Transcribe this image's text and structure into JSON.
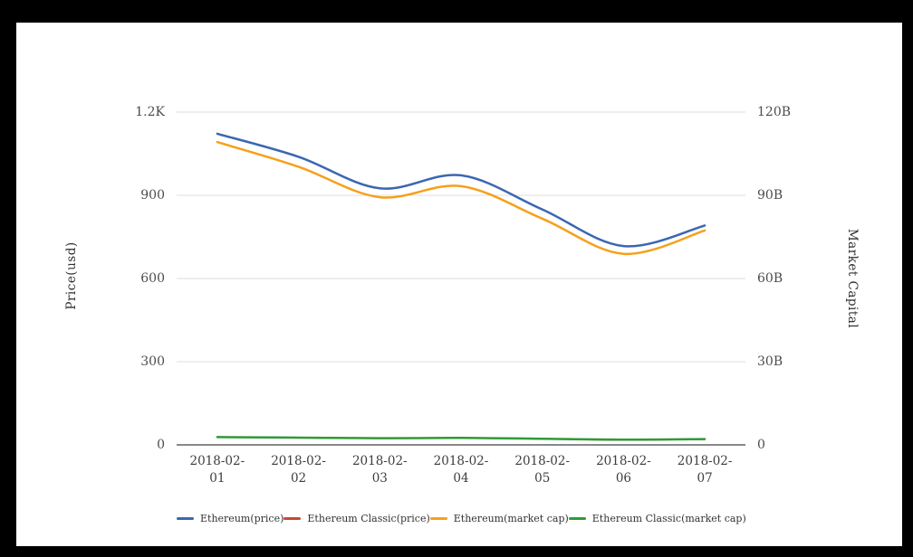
{
  "chart_data": {
    "type": "line",
    "smooth": true,
    "grid": true,
    "legend_position": "bottom",
    "title": "",
    "categories": [
      "2018-02-01",
      "2018-02-02",
      "2018-02-03",
      "2018-02-04",
      "2018-02-05",
      "2018-02-06",
      "2018-02-07"
    ],
    "left_axis": {
      "label": "Price(usd)",
      "ticks": [
        "1.2K",
        "900",
        "600",
        "300",
        "0"
      ],
      "ylim": [
        0,
        1200
      ]
    },
    "right_axis": {
      "label": "Market Capital",
      "ticks": [
        "120B",
        "90B",
        "60B",
        "30B",
        "0"
      ],
      "ylim_billions": [
        0,
        120
      ]
    },
    "series": [
      {
        "name": "Ethereum(price)",
        "axis": "left",
        "color": "#3A67B1",
        "stroke_width": 2.5,
        "values": [
          1122,
          1039,
          925,
          972,
          849,
          717,
          791
        ]
      },
      {
        "name": "Ethereum Classic(price)",
        "axis": "left",
        "color": "#C7492F",
        "stroke_width": 2,
        "values": [
          28,
          26,
          24,
          25,
          22,
          18,
          21
        ]
      },
      {
        "name": "Ethereum(market cap)",
        "axis": "right",
        "color": "#F6A01B",
        "stroke_width": 2.5,
        "values_billions": [
          109.2,
          100.3,
          89.3,
          93.3,
          81.6,
          68.9,
          77.3
        ]
      },
      {
        "name": "Ethereum Classic(market cap)",
        "axis": "right",
        "color": "#2E9B38",
        "stroke_width": 2.5,
        "values_billions": [
          2.8,
          2.6,
          2.4,
          2.5,
          2.2,
          1.9,
          2.1
        ]
      }
    ],
    "colors": {
      "gridline": "#dcdcdc",
      "axis_line": "#424242",
      "tick_text": "#4c4c4c",
      "background": "#ffffff",
      "frame": "#000000"
    }
  }
}
